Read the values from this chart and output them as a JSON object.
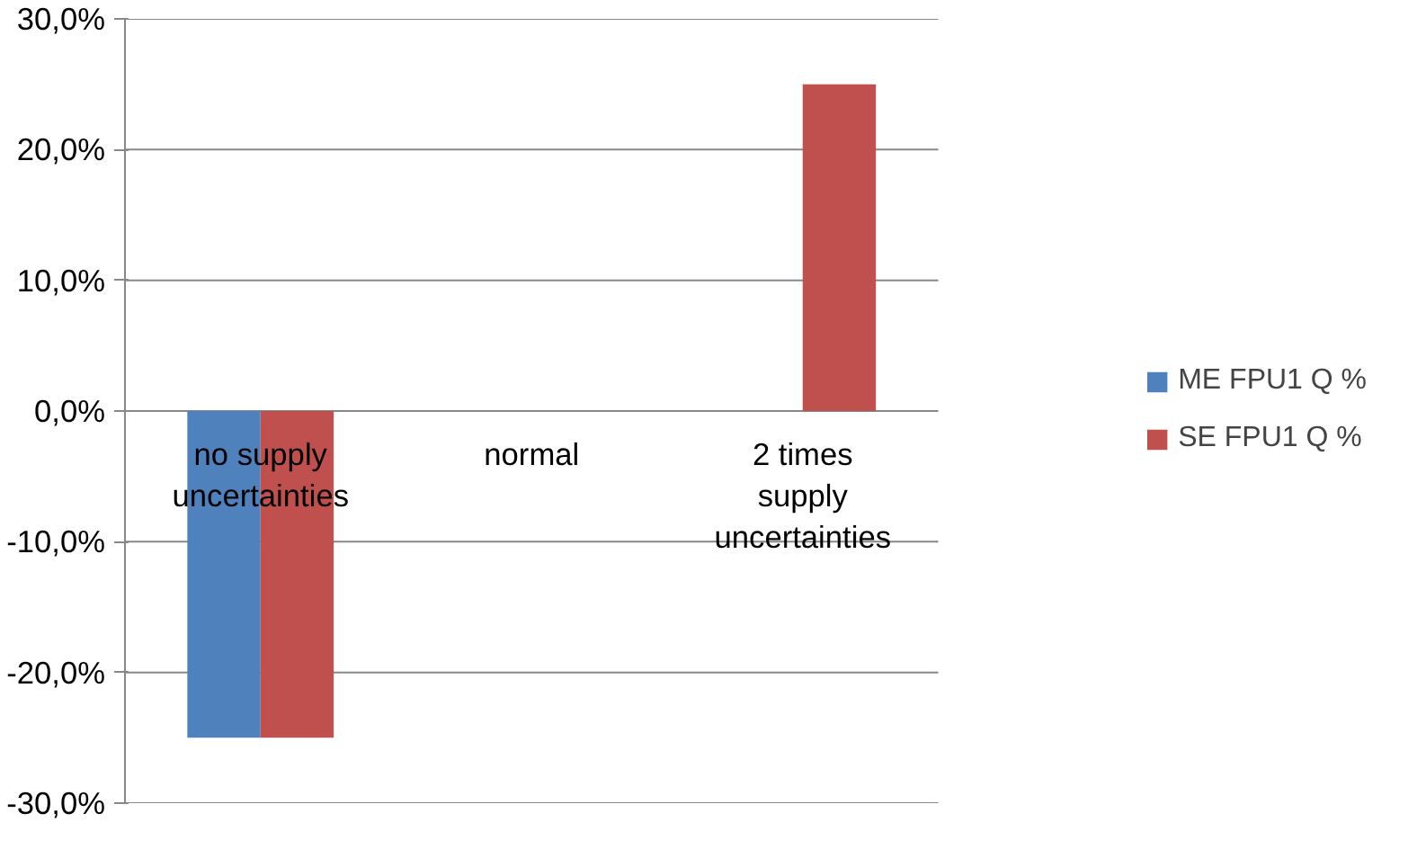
{
  "chart_data": {
    "type": "bar",
    "categories": [
      "no supply\nuncertainties",
      "normal",
      "2 times\nsupply\nuncertainties"
    ],
    "series": [
      {
        "name": "ME FPU1 Q %",
        "color": "#4f81bd",
        "values": [
          -25,
          0,
          0
        ]
      },
      {
        "name": "SE FPU1 Q %",
        "color": "#c0504d",
        "values": [
          -25,
          0,
          25
        ]
      }
    ],
    "ylim": [
      -30,
      30
    ],
    "yticks": [
      {
        "value": -30,
        "label": "-30,0%"
      },
      {
        "value": -20,
        "label": "-20,0%"
      },
      {
        "value": -10,
        "label": "-10,0%"
      },
      {
        "value": 0,
        "label": "0,0%"
      },
      {
        "value": 10,
        "label": "10,0%"
      },
      {
        "value": 20,
        "label": "20,0%"
      },
      {
        "value": 30,
        "label": "30,0%"
      }
    ],
    "grid": "y",
    "legend": "right"
  }
}
